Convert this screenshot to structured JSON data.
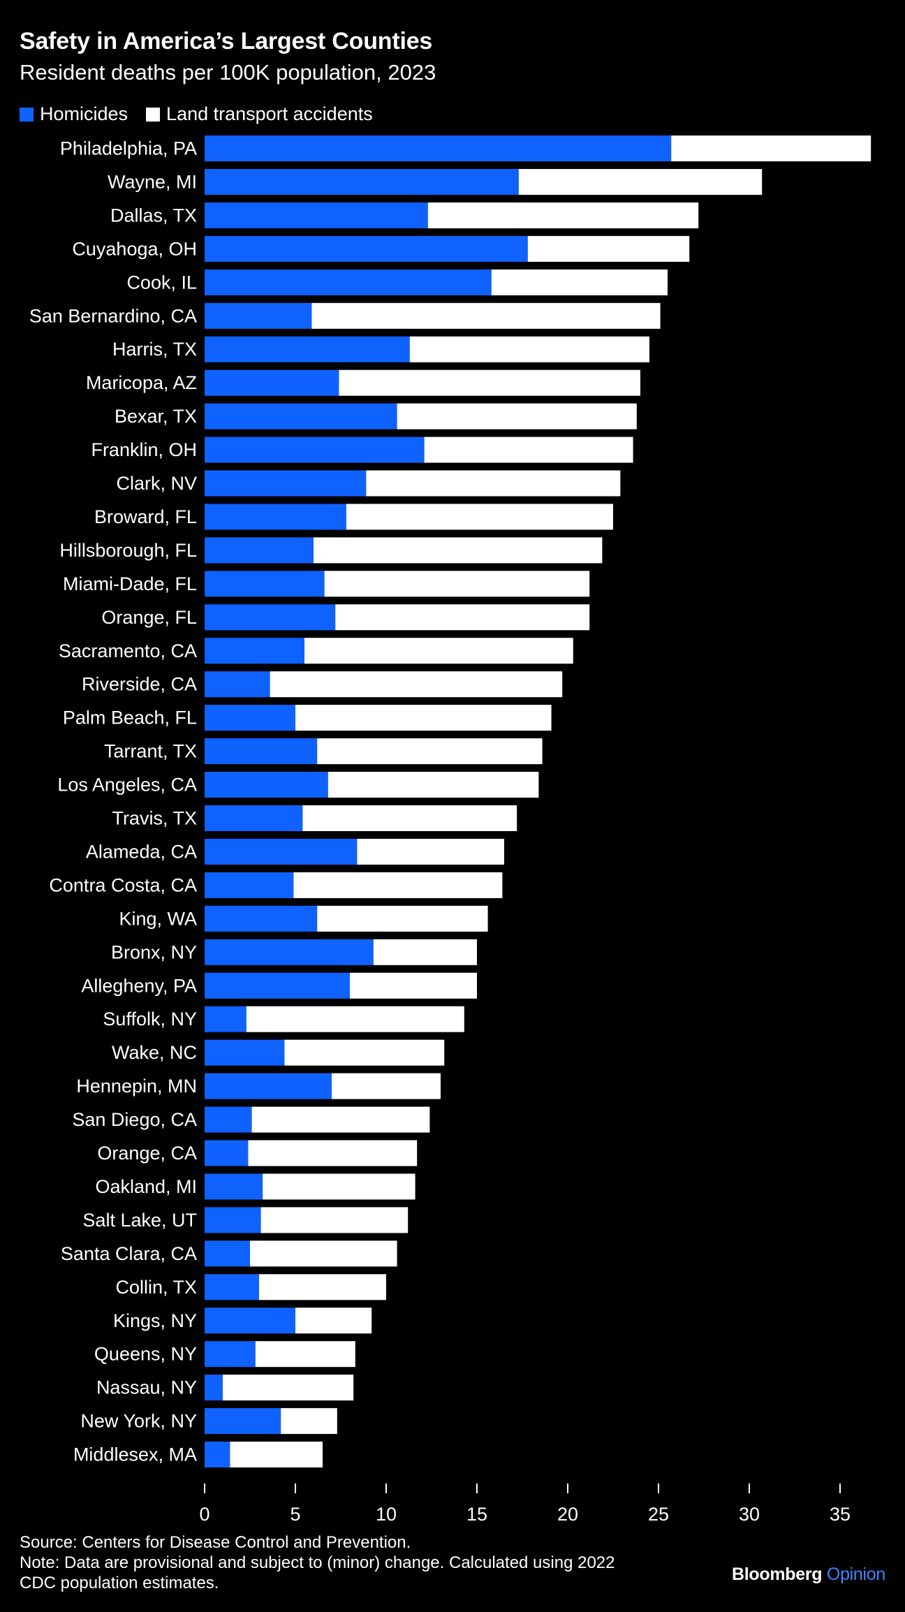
{
  "header": {
    "title": "Safety in America’s Largest Counties",
    "subtitle": "Resident deaths per 100K population, 2023"
  },
  "colors": {
    "homicides": "#0f62fe",
    "land_transport": "#ffffff",
    "background": "#000000",
    "text": "#ffffff",
    "brand_accent": "#3c86ff"
  },
  "chart_data": {
    "type": "bar",
    "orientation": "horizontal",
    "stacked": true,
    "title": "Safety in America’s Largest Counties",
    "subtitle": "Resident deaths per 100K population, 2023",
    "xlabel": "",
    "ylabel": "",
    "xlim": [
      0,
      37
    ],
    "xticks": [
      0,
      5,
      10,
      15,
      20,
      25,
      30,
      35
    ],
    "grid": false,
    "legend_position": "top-left",
    "categories": [
      "Philadelphia, PA",
      "Wayne, MI",
      "Dallas, TX",
      "Cuyahoga, OH",
      "Cook, IL",
      "San Bernardino, CA",
      "Harris, TX",
      "Maricopa, AZ",
      "Bexar, TX",
      "Franklin, OH",
      "Clark, NV",
      "Broward, FL",
      "Hillsborough, FL",
      "Miami-Dade, FL",
      "Orange, FL",
      "Sacramento, CA",
      "Riverside, CA",
      "Palm Beach, FL",
      "Tarrant, TX",
      "Los Angeles, CA",
      "Travis, TX",
      "Alameda, CA",
      "Contra Costa, CA",
      "King, WA",
      "Bronx, NY",
      "Allegheny, PA",
      "Suffolk, NY",
      "Wake, NC",
      "Hennepin, MN",
      "San Diego, CA",
      "Orange, CA",
      "Oakland, MI",
      "Salt Lake, UT",
      "Santa Clara, CA",
      "Collin, TX",
      "Kings, NY",
      "Queens, NY",
      "Nassau, NY",
      "New York, NY",
      "Middlesex, MA"
    ],
    "series": [
      {
        "name": "Homicides",
        "values": [
          25.7,
          17.3,
          12.3,
          17.8,
          15.8,
          5.9,
          11.3,
          7.4,
          10.6,
          12.1,
          8.9,
          7.8,
          6.0,
          6.6,
          7.2,
          5.5,
          3.6,
          5.0,
          6.2,
          6.8,
          5.4,
          8.4,
          4.9,
          6.2,
          9.3,
          8.0,
          2.3,
          4.4,
          7.0,
          2.6,
          2.4,
          3.2,
          3.1,
          2.5,
          3.0,
          5.0,
          2.8,
          1.0,
          4.2,
          1.4
        ]
      },
      {
        "name": "Land transport accidents",
        "values": [
          11.0,
          13.4,
          14.9,
          8.9,
          9.7,
          19.2,
          13.2,
          16.6,
          13.2,
          11.5,
          14.0,
          14.7,
          15.9,
          14.6,
          14.0,
          14.8,
          16.1,
          14.1,
          12.4,
          11.6,
          11.8,
          8.1,
          11.5,
          9.4,
          5.7,
          7.0,
          12.0,
          8.8,
          6.0,
          9.8,
          9.3,
          8.4,
          8.1,
          8.1,
          7.0,
          4.2,
          5.5,
          7.2,
          3.1,
          5.1
        ]
      }
    ]
  },
  "footer": {
    "source": "Source: Centers for Disease Control and Prevention.",
    "note_line1": "Note: Data are provisional and subject to (minor) change. Calculated using 2022",
    "note_line2": "CDC population estimates."
  },
  "brand": {
    "name": "Bloomberg",
    "section": "Opinion"
  }
}
